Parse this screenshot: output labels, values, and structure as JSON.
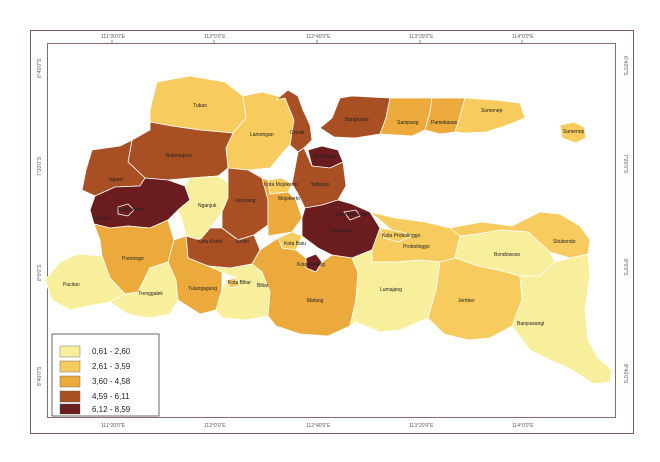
{
  "colors": {
    "class1": "#f8ef9c",
    "class2": "#f7cb5d",
    "class3": "#ecaa3c",
    "class4": "#a84f24",
    "class5": "#6b1c1e",
    "frame": "#8a6a6a"
  },
  "ticks": {
    "top": [
      "111°20'0\"E",
      "112°0'0\"E",
      "112°40'0\"E",
      "113°20'0\"E",
      "114°0'0\"E"
    ],
    "bottom": [
      "111°20'0\"E",
      "112°0'0\"E",
      "112°40'0\"E",
      "113°20'0\"E",
      "114°0'0\"E"
    ],
    "left": [
      "6°40'0\"S",
      "7°20'0\"S",
      "8°0'0\"S",
      "8°40'0\"S"
    ],
    "right": [
      "6°40'0\"S",
      "7°20'0\"S",
      "8°0'0\"S",
      "8°40'0\"S"
    ]
  },
  "legend": {
    "items": [
      {
        "label": "0,61 - 2,60",
        "color_key": "class1"
      },
      {
        "label": "2,61 - 3,59",
        "color_key": "class2"
      },
      {
        "label": "3,60 - 4,58",
        "color_key": "class3"
      },
      {
        "label": "4,59 - 6,11",
        "color_key": "class4"
      },
      {
        "label": "6,12 - 8,59",
        "color_key": "class5"
      }
    ]
  },
  "regions": [
    {
      "name": "Tuban",
      "class": 2
    },
    {
      "name": "Lamongan",
      "class": 2
    },
    {
      "name": "Gresik",
      "class": 4
    },
    {
      "name": "Bangkalan",
      "class": 4
    },
    {
      "name": "Sampang",
      "class": 3
    },
    {
      "name": "Pamekasan",
      "class": 3
    },
    {
      "name": "Sumenep",
      "class": 2
    },
    {
      "name": "Bojonegoro",
      "class": 4
    },
    {
      "name": "Ngawi",
      "class": 4
    },
    {
      "name": "Madiun",
      "class": 5
    },
    {
      "name": "Kota Madiun",
      "class": 5
    },
    {
      "name": "Nganjuk",
      "class": 1
    },
    {
      "name": "Jombang",
      "class": 4
    },
    {
      "name": "Kota Mojokerto",
      "class": 2
    },
    {
      "name": "Mojokerto",
      "class": 3
    },
    {
      "name": "Surabaya",
      "class": 5
    },
    {
      "name": "Sidoarjo",
      "class": 4
    },
    {
      "name": "Pasuruan",
      "class": 5
    },
    {
      "name": "Kota Pasuruan",
      "class": 5
    },
    {
      "name": "Kota Probolinggo",
      "class": 2
    },
    {
      "name": "Probolinggo",
      "class": 2
    },
    {
      "name": "Situbondo",
      "class": 2
    },
    {
      "name": "Bondowoso",
      "class": 1
    },
    {
      "name": "Ponorogo",
      "class": 3
    },
    {
      "name": "Kota Kediri",
      "class": 4
    },
    {
      "name": "Kediri",
      "class": 4
    },
    {
      "name": "Kota Batu",
      "class": 2
    },
    {
      "name": "Kota Malang",
      "class": 5
    },
    {
      "name": "Pacitan",
      "class": 1
    },
    {
      "name": "Trenggalek",
      "class": 1
    },
    {
      "name": "Tulungagung",
      "class": 3
    },
    {
      "name": "Kota Blitar",
      "class": 2
    },
    {
      "name": "Blitar",
      "class": 1
    },
    {
      "name": "Malang",
      "class": 3
    },
    {
      "name": "Lumajang",
      "class": 1
    },
    {
      "name": "Jember",
      "class": 2
    },
    {
      "name": "Banyuwangi",
      "class": 1
    },
    {
      "name": "Sumenep Island",
      "class": 2
    }
  ]
}
